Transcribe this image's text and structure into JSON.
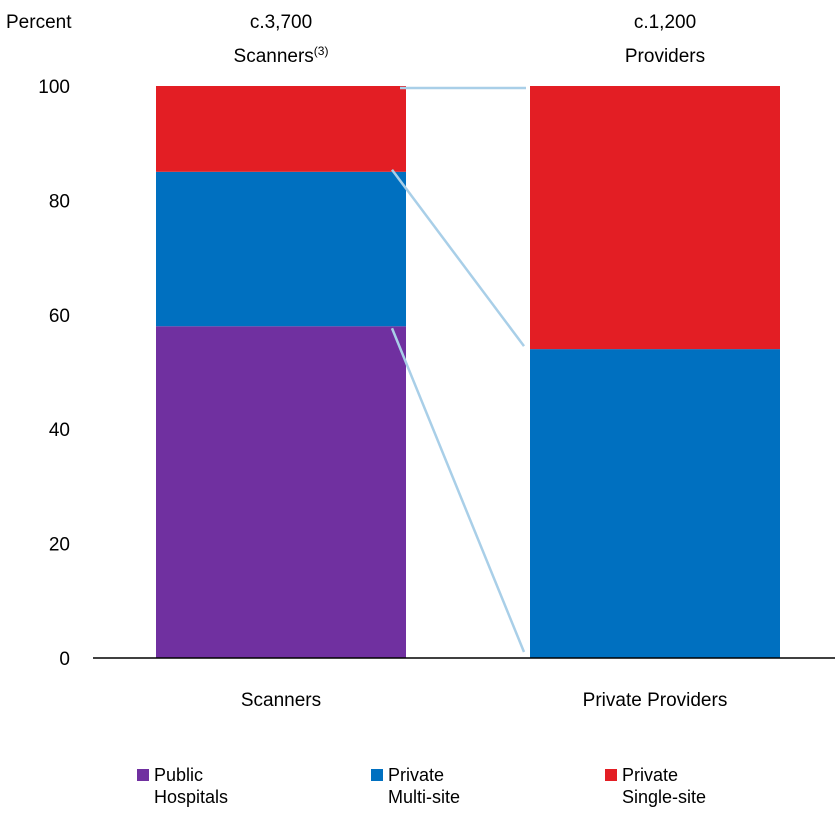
{
  "chart_data": {
    "type": "bar",
    "stacked": true,
    "ylabel": "Percent",
    "ylim": [
      0,
      100
    ],
    "yticks": [
      0,
      20,
      40,
      60,
      80,
      100
    ],
    "grid": false,
    "legend_position": "bottom",
    "categories": [
      "Scanners",
      "Private Providers"
    ],
    "column_headers": [
      {
        "main": "c.3,700",
        "sub": "Scanners",
        "sup": "(3)"
      },
      {
        "main": "c.1,200",
        "sub": "Providers",
        "sup": ""
      }
    ],
    "series": [
      {
        "name": "Public Hospitals",
        "legend_lines": [
          "Public",
          "Hospitals"
        ],
        "color": "#7030a0",
        "values": [
          58,
          0
        ]
      },
      {
        "name": "Private Multi-site",
        "legend_lines": [
          "Private",
          "Multi-site"
        ],
        "color": "#0070c0",
        "values": [
          27,
          54
        ]
      },
      {
        "name": "Private Single-site",
        "legend_lines": [
          "Private",
          "Single-site"
        ],
        "color": "#e31e24",
        "values": [
          15,
          46
        ]
      }
    ],
    "connector_color": "#a9cfe8"
  }
}
